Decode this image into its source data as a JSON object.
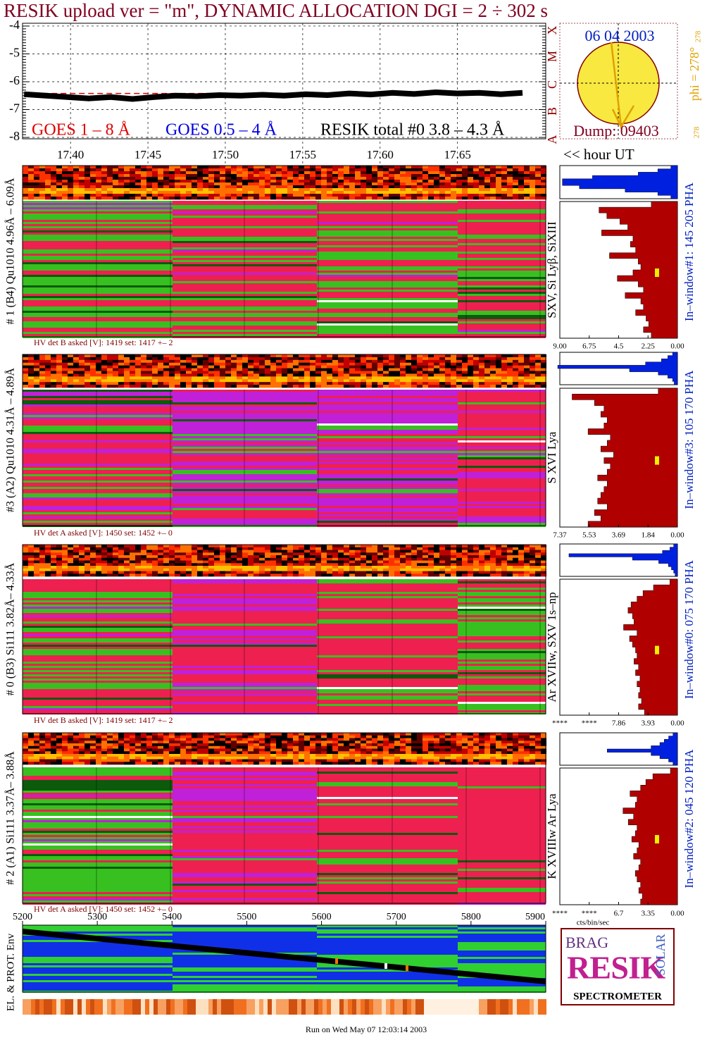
{
  "chart_data": [
    {
      "type": "line",
      "title": "RESIK upload ver = \"m\", DYNAMIC ALLOCATION  DGI =   2 ÷ 302 s",
      "x": [
        17.37,
        17.384,
        17.398,
        17.412,
        17.426,
        17.44,
        17.454,
        17.468,
        17.482,
        17.496,
        17.51,
        17.524,
        17.538,
        17.552,
        17.566,
        17.58,
        17.594,
        17.608,
        17.622,
        17.636,
        17.65,
        17.664,
        17.678,
        17.692
      ],
      "series": [
        {
          "name": "GOES 1 – 8 Å",
          "color": "#e00000",
          "values": [
            -6.42,
            -6.42,
            -6.42,
            -6.42,
            -6.42,
            -6.42,
            -6.42,
            -6.42,
            -6.42,
            -6.42,
            -6.42,
            -6.42,
            -6.42,
            -6.42,
            -6.42,
            -6.42,
            -6.42,
            -6.42,
            -6.42,
            -6.42,
            -6.42,
            -6.42,
            -6.42,
            -6.42
          ]
        },
        {
          "name": "GOES 0.5 – 4 Å",
          "color": "#0000e0",
          "values": [
            null,
            null,
            null,
            null,
            null,
            null,
            null,
            null,
            null,
            null,
            null,
            null,
            null,
            null,
            null,
            null,
            null,
            null,
            null,
            null,
            null,
            null,
            null,
            null
          ]
        },
        {
          "name": "RESIK total #0  3.8 – 4.3 Å",
          "color": "#000000",
          "values": [
            -6.45,
            -6.5,
            -6.55,
            -6.6,
            -6.55,
            -6.62,
            -6.55,
            -6.5,
            -6.52,
            -6.48,
            -6.5,
            -6.47,
            -6.5,
            -6.45,
            -6.48,
            -6.42,
            -6.46,
            -6.4,
            -6.44,
            -6.38,
            -6.42,
            -6.4,
            -6.45,
            -6.4
          ]
        }
      ],
      "xlim": [
        17.369,
        17.707
      ],
      "xticks": [
        {
          "value": 17.4,
          "label": "17.40"
        },
        17.45,
        {
          "value": 17.5,
          "label": "17.50"
        },
        17.55,
        {
          "value": 17.6,
          "label": "17.60"
        },
        17.65
      ],
      "ylim": [
        -8.05,
        -3.9
      ],
      "yticks": [
        -4,
        -5,
        -6,
        -7,
        -8
      ],
      "grid": true
    },
    {
      "type": "bar",
      "orientation": "horizontal",
      "label": "# 1 (B4) Qu1010 4.96Å – 6.09Å",
      "line_label": "SXV, Si Lyβ, SiXIII",
      "window_label": "In–window#1:  145 205 PHA",
      "hv_label": "HV det B asked [V]:  1419 set:  1417 +–    2",
      "xlim": [
        9,
        0
      ],
      "xticks": [
        {
          "value": 9,
          "label": "9.00"
        },
        6.75,
        4.5,
        2.25,
        {
          "value": 0,
          "label": "0.00"
        }
      ],
      "series": [
        {
          "color": "#0020e0",
          "values": [
            0.5,
            1.5,
            3.0,
            6.5,
            8.8,
            8.8,
            7.5,
            4.0,
            1.5,
            0.5
          ]
        },
        {
          "color": "#b00000",
          "values": [
            2.0,
            6.0,
            5.4,
            4.4,
            3.8,
            5.8,
            3.4,
            3.6,
            3.2,
            5.2,
            3.0,
            2.8,
            3.4,
            4.6,
            3.0,
            2.6,
            4.0,
            2.8,
            2.6,
            3.2,
            2.4,
            2.2,
            2.6,
            2.0
          ]
        }
      ]
    },
    {
      "type": "bar",
      "orientation": "horizontal",
      "label": "#3 (A2) Qu1010  4.31Å – 4.89Å",
      "line_label": "S XVI Lya",
      "window_label": "In–window#3:  105 170 PHA",
      "hv_label": "HV det A asked [V]:  1450 set:  1452 +–    0",
      "xlim": [
        7.37,
        0
      ],
      "xticks": [
        7.37,
        5.53,
        3.69,
        1.84,
        {
          "value": 0,
          "label": "0.00"
        }
      ],
      "series": [
        {
          "color": "#0020e0",
          "values": [
            0.3,
            0.6,
            1.0,
            2.0,
            7.5,
            3.0,
            1.2,
            0.6,
            0.3,
            0.2
          ]
        },
        {
          "color": "#b00000",
          "values": [
            1.2,
            6.6,
            5.2,
            4.6,
            4.8,
            4.4,
            4.6,
            5.6,
            4.2,
            4.4,
            4.8,
            4.0,
            4.6,
            4.2,
            4.4,
            5.0,
            4.4,
            4.6,
            4.8,
            5.0,
            4.4,
            5.2,
            4.8,
            5.6
          ]
        }
      ]
    },
    {
      "type": "bar",
      "orientation": "horizontal",
      "label": "# 0 (B3) Si111  3.82Å– 4.33Å",
      "line_label": "Ar XVIIw, SXV 1s–np",
      "window_label": "In–window#0:  075 170 PHA",
      "hv_label": "HV det B asked [V]:  1419 set:  1417 +–    2",
      "xlim": [
        15.72,
        0
      ],
      "xticks": [
        {
          "value": 15.72,
          "label": "****"
        },
        {
          "value": 11.79,
          "label": "****"
        },
        7.86,
        3.93,
        {
          "value": 0,
          "label": "0.00"
        }
      ],
      "series": [
        {
          "color": "#0020e0",
          "values": [
            0.5,
            1.0,
            2.0,
            14.5,
            6.0,
            2.5,
            1.2,
            0.8,
            0.5,
            0.3
          ]
        },
        {
          "color": "#b00000",
          "values": [
            1.0,
            3.2,
            4.6,
            5.4,
            6.2,
            6.6,
            6.0,
            5.8,
            7.2,
            5.4,
            6.4,
            6.0,
            5.6,
            5.4,
            5.8,
            5.2,
            5.6,
            5.0,
            5.4,
            5.0,
            5.2,
            4.8,
            5.2,
            4.4
          ]
        }
      ]
    },
    {
      "type": "bar",
      "orientation": "horizontal",
      "label": "# 2 (A1) Si111  3.37Å– 3.88Å",
      "line_label": "K XVIIIw  Ar Lya",
      "window_label": "In–window#2:  045 120 PHA",
      "hv_label": "HV det A asked [V]:  1450 set:  1452 +–    0",
      "xlim": [
        13.4,
        0
      ],
      "xticks": [
        {
          "value": 13.4,
          "label": "****"
        },
        {
          "value": 10.05,
          "label": "****"
        },
        6.7,
        3.35,
        {
          "value": 0,
          "label": "0.00"
        }
      ],
      "xlabel": "cts/bin/sec",
      "series": [
        {
          "color": "#0020e0",
          "values": [
            0.5,
            1.0,
            1.5,
            2.0,
            3.0,
            8.0,
            3.0,
            2.0,
            1.0,
            0.5
          ]
        },
        {
          "color": "#b00000",
          "values": [
            0.8,
            2.8,
            3.6,
            4.2,
            5.4,
            4.6,
            4.8,
            6.2,
            5.0,
            5.6,
            4.6,
            4.8,
            5.2,
            4.4,
            4.6,
            5.0,
            4.2,
            4.4,
            4.8,
            4.6,
            4.2,
            4.4,
            4.0,
            4.2
          ]
        }
      ]
    },
    {
      "type": "line",
      "ylabel": "EL. & PROT. Env",
      "x": [
        5200,
        5900
      ],
      "values": [
        0.905,
        0.158
      ],
      "color": "#000000",
      "xlim": [
        5200,
        5900
      ],
      "xticks": [
        5200,
        5300,
        5400,
        5500,
        5600,
        5700,
        5800,
        5900
      ],
      "ylim": [
        0,
        1
      ]
    }
  ],
  "page": {
    "date": "06 04 2003",
    "dump": "Dump: 09403",
    "phi": "phi = 278°",
    "phi_sup": "278",
    "phi_low": "278",
    "classes": [
      "X",
      "M",
      "C",
      "B",
      "A"
    ],
    "hour_label": "<< hour UT",
    "footer": "Run on Wed May 07 12:03:14 2003",
    "logo": {
      "brag": "BRAG",
      "resik": "RESIK",
      "solar": "SOLAR",
      "name": "SPECTROMETER"
    }
  }
}
